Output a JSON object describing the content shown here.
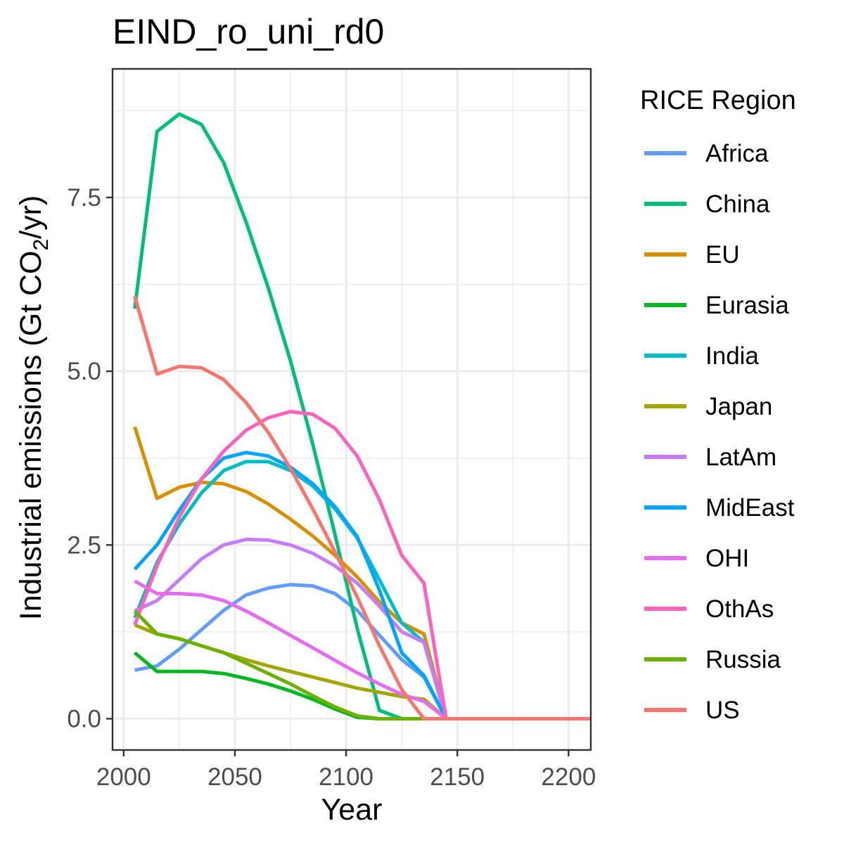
{
  "chart_data": {
    "type": "line",
    "title": "EIND_ro_uni_rd0",
    "xlabel": "Year",
    "ylabel": {
      "prefix": "Industrial emissions (Gt CO",
      "subscript": "2",
      "suffix": "/yr)"
    },
    "xlim": [
      1995,
      2210
    ],
    "ylim": [
      -0.45,
      9.35
    ],
    "x_ticks": [
      2000,
      2050,
      2100,
      2150,
      2200
    ],
    "x_tick_labels": [
      "2000",
      "2050",
      "2100",
      "2150",
      "2200"
    ],
    "y_ticks": [
      0,
      2.5,
      5,
      7.5
    ],
    "y_tick_labels": [
      "0.0",
      "2.5",
      "5.0",
      "7.5"
    ],
    "grid": true,
    "legend": {
      "title": "RICE Region",
      "placement": "right"
    },
    "x": [
      2005,
      2015,
      2025,
      2035,
      2045,
      2055,
      2065,
      2075,
      2085,
      2095,
      2105,
      2115,
      2125,
      2135,
      2145,
      2155,
      2165,
      2175,
      2185,
      2195,
      2205,
      2215
    ],
    "series": [
      {
        "name": "Africa",
        "color": "#619CFF",
        "values": [
          0.7,
          0.76,
          1.0,
          1.28,
          1.56,
          1.78,
          1.88,
          1.93,
          1.91,
          1.8,
          1.56,
          1.2,
          0.85,
          0.6,
          0,
          0,
          0,
          0,
          0,
          0,
          0,
          0
        ]
      },
      {
        "name": "China",
        "color": "#00BF7D",
        "values": [
          5.9,
          8.45,
          8.7,
          8.55,
          8.0,
          7.15,
          6.2,
          5.15,
          3.95,
          2.65,
          1.3,
          0.12,
          0,
          0,
          0,
          0,
          0,
          0,
          0,
          0,
          0,
          0
        ]
      },
      {
        "name": "EU",
        "color": "#D89000",
        "values": [
          4.2,
          3.17,
          3.33,
          3.4,
          3.38,
          3.27,
          3.09,
          2.87,
          2.63,
          2.35,
          2.04,
          1.68,
          1.38,
          1.22,
          0,
          0,
          0,
          0,
          0,
          0,
          0,
          0
        ]
      },
      {
        "name": "Eurasia",
        "color": "#00B81F",
        "values": [
          0.95,
          0.68,
          0.68,
          0.68,
          0.65,
          0.58,
          0.5,
          0.4,
          0.28,
          0.14,
          0.02,
          0,
          0,
          0,
          0,
          0,
          0,
          0,
          0,
          0,
          0,
          0
        ]
      },
      {
        "name": "India",
        "color": "#00BFC4",
        "values": [
          1.45,
          2.25,
          2.8,
          3.25,
          3.57,
          3.7,
          3.7,
          3.57,
          3.35,
          3.02,
          2.6,
          2.0,
          1.38,
          1.1,
          0,
          0,
          0,
          0,
          0,
          0,
          0,
          0
        ]
      },
      {
        "name": "Japan",
        "color": "#A3A500",
        "values": [
          1.35,
          1.22,
          1.15,
          1.05,
          0.95,
          0.85,
          0.76,
          0.68,
          0.6,
          0.52,
          0.44,
          0.38,
          0.32,
          0.28,
          0,
          0,
          0,
          0,
          0,
          0,
          0,
          0
        ]
      },
      {
        "name": "LatAm",
        "color": "#C77CFF",
        "values": [
          1.55,
          1.7,
          2.0,
          2.3,
          2.5,
          2.58,
          2.57,
          2.5,
          2.38,
          2.2,
          1.95,
          1.62,
          1.25,
          1.1,
          0,
          0,
          0,
          0,
          0,
          0,
          0,
          0
        ]
      },
      {
        "name": "MidEast",
        "color": "#00A5FF",
        "values": [
          2.15,
          2.5,
          3.0,
          3.45,
          3.75,
          3.83,
          3.78,
          3.62,
          3.38,
          3.05,
          2.62,
          1.85,
          0.95,
          0.62,
          0,
          0,
          0,
          0,
          0,
          0,
          0,
          0
        ]
      },
      {
        "name": "OHI",
        "color": "#E76BF3",
        "values": [
          1.98,
          1.8,
          1.8,
          1.78,
          1.7,
          1.55,
          1.38,
          1.2,
          1.02,
          0.84,
          0.66,
          0.5,
          0.35,
          0.25,
          0,
          0,
          0,
          0,
          0,
          0,
          0,
          0
        ]
      },
      {
        "name": "OthAs",
        "color": "#FF62BC",
        "values": [
          1.35,
          2.2,
          2.9,
          3.45,
          3.85,
          4.15,
          4.33,
          4.42,
          4.38,
          4.18,
          3.78,
          3.15,
          2.35,
          1.95,
          0,
          0,
          0,
          0,
          0,
          0,
          0,
          0
        ]
      },
      {
        "name": "Russia",
        "color": "#6BB100",
        "values": [
          1.55,
          1.22,
          1.15,
          1.05,
          0.95,
          0.8,
          0.65,
          0.5,
          0.33,
          0.17,
          0.04,
          0,
          0,
          0,
          0,
          0,
          0,
          0,
          0,
          0,
          0,
          0
        ]
      },
      {
        "name": "US",
        "color": "#F8766D",
        "values": [
          6.08,
          4.96,
          5.07,
          5.05,
          4.88,
          4.55,
          4.12,
          3.6,
          3.02,
          2.4,
          1.75,
          1.05,
          0.42,
          0,
          0,
          0,
          0,
          0,
          0,
          0,
          0,
          0
        ]
      }
    ]
  }
}
